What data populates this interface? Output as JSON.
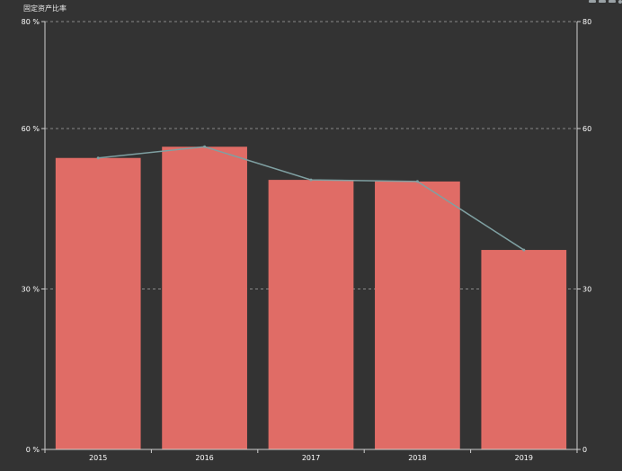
{
  "chart_data": {
    "type": "bar",
    "title": "固定资产比率",
    "categories": [
      "2015",
      "2016",
      "2017",
      "2018",
      "2019"
    ],
    "series": [
      {
        "type": "bar",
        "values": [
          54.5,
          56.6,
          50.4,
          50.1,
          37.3
        ]
      },
      {
        "type": "line",
        "values": [
          54.5,
          56.6,
          50.4,
          50.1,
          37.3
        ]
      }
    ],
    "y_left": {
      "ticks": [
        0,
        30,
        60,
        80
      ],
      "tick_labels": [
        "0 %",
        "30 %",
        "60 %",
        "80 %"
      ],
      "ylim": [
        0,
        80
      ]
    },
    "y_right": {
      "ticks": [
        0,
        30,
        60,
        80
      ],
      "tick_labels": [
        "0",
        "30",
        "60",
        "80"
      ],
      "ylim": [
        0,
        80
      ]
    },
    "grid": true,
    "colors": {
      "bar": "#e06c66",
      "line": "#7fa0a2",
      "axis": "#cfcfcf",
      "grid": "#8a8a8a",
      "text": "#ffffff",
      "background": "#333333"
    }
  },
  "toolbox": {
    "icons": [
      "restore-icon",
      "data-view-icon",
      "save-image-icon",
      "zoom-icon"
    ]
  }
}
